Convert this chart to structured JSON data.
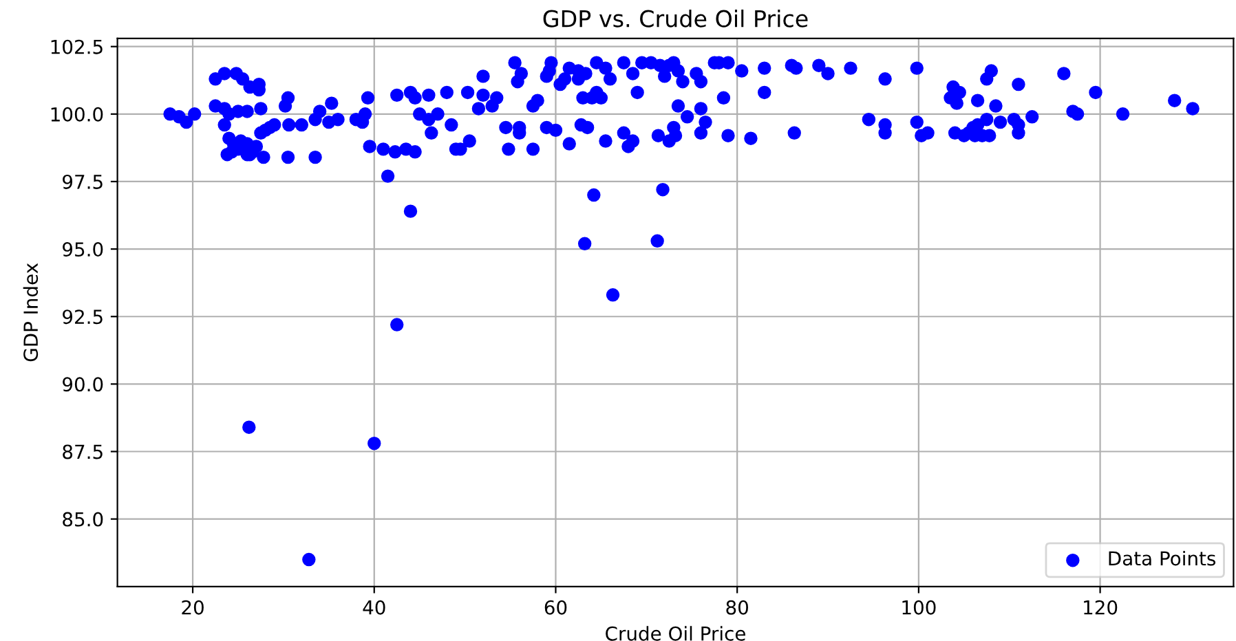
{
  "chart_data": {
    "type": "scatter",
    "title": "GDP vs. Crude Oil Price",
    "xlabel": "Crude Oil Price",
    "ylabel": "GDP Index",
    "xlim": [
      11.7,
      134.7
    ],
    "ylim": [
      82.5,
      102.8
    ],
    "xticks": [
      20,
      40,
      60,
      80,
      100,
      120
    ],
    "yticks": [
      {
        "value": 85,
        "label": "85.0"
      },
      {
        "value": 87.5,
        "label": "87.5"
      },
      {
        "value": 90,
        "label": "90.0"
      },
      {
        "value": 92.5,
        "label": "92.5"
      },
      {
        "value": 95,
        "label": "95.0"
      },
      {
        "value": 97.5,
        "label": "97.5"
      },
      {
        "value": 100,
        "label": "100.0"
      },
      {
        "value": 102.5,
        "label": "102.5"
      }
    ],
    "grid": true,
    "legend": "bottom right",
    "marker": "circle",
    "series": [
      {
        "name": "Data Points",
        "color": "#0000ff",
        "x": [
          17.5,
          18.5,
          19.3,
          20.2,
          22.5,
          23.5,
          24.8,
          25.5,
          26.3,
          27.3,
          27.3,
          22.5,
          23.5,
          24.0,
          25,
          26,
          23.5,
          24,
          24.5,
          25,
          25.3,
          26,
          26,
          26.6,
          27,
          27.5,
          28.0,
          28.5,
          29,
          23.8,
          24.3,
          26.3,
          27.8,
          30.5,
          33.5,
          27.5,
          30.5,
          30.2,
          30.6,
          32,
          33.5,
          34,
          35.3,
          35,
          36,
          38,
          38.7,
          39,
          39.3,
          39.5,
          41,
          41.5,
          42.3,
          43.5,
          44.5,
          44,
          42.5,
          40,
          26.2,
          32.8,
          42.5,
          44,
          44.5,
          45,
          46,
          46,
          46.3,
          47,
          48,
          48.5,
          49,
          49.5,
          50.5,
          50.3,
          51.5,
          52,
          52,
          53,
          53.5,
          54.5,
          54.8,
          55.5,
          55.8,
          56.2,
          56,
          56,
          57.5,
          57.5,
          58,
          59,
          59.3,
          59.5,
          59,
          60,
          60.5,
          61,
          61.5,
          61.5,
          62.5,
          62.5,
          62.8,
          63,
          63.3,
          63.5,
          64,
          64.5,
          64.5,
          65,
          65.5,
          66,
          65.5,
          66.3,
          63.2,
          64.2,
          67.5,
          67.5,
          68,
          68.5,
          68.5,
          69,
          69.5,
          70.5,
          71.3,
          71.5,
          72,
          72.5,
          72.5,
          73,
          73.5,
          73,
          73.2,
          73.5,
          74,
          74.5,
          75.5,
          76,
          76,
          76,
          76.5,
          77.5,
          78,
          78.5,
          79,
          79,
          80.5,
          81.5,
          71.2,
          71.8,
          83,
          83,
          86,
          86.5,
          86.3,
          89,
          90,
          92.5,
          94.5,
          96.3,
          96.3,
          96.3,
          99.8,
          99.8,
          100.3,
          101,
          103.5,
          103.8,
          104.2,
          104,
          104.5,
          105,
          105.5,
          106,
          106.5,
          107,
          107.5,
          106.5,
          107.5,
          108,
          108.5,
          109,
          110.5,
          111,
          111,
          111,
          112.5,
          116,
          117,
          117.5,
          119.5,
          122.5,
          128.2,
          130.2,
          107.8,
          106.2
        ],
        "values": [
          100.0,
          99.9,
          99.7,
          100.0,
          101.3,
          101.5,
          101.5,
          101.3,
          101.0,
          100.9,
          101.1,
          100.3,
          100.2,
          100.0,
          100.1,
          100.1,
          99.6,
          99.1,
          98.9,
          98.7,
          99.0,
          98.9,
          98.5,
          98.6,
          98.8,
          99.3,
          99.4,
          99.5,
          99.6,
          98.5,
          98.6,
          98.5,
          98.4,
          98.4,
          98.4,
          100.2,
          100.6,
          100.3,
          99.6,
          99.6,
          99.8,
          100.1,
          100.4,
          99.7,
          99.8,
          99.8,
          99.7,
          100.0,
          100.6,
          98.8,
          98.7,
          97.7,
          98.6,
          98.7,
          98.6,
          96.4,
          92.2,
          87.8,
          88.4,
          83.5,
          100.7,
          100.8,
          100.6,
          100.0,
          100.7,
          99.8,
          99.3,
          100.0,
          100.8,
          99.6,
          98.7,
          98.7,
          99.0,
          100.8,
          100.2,
          100.7,
          101.4,
          100.3,
          100.6,
          99.5,
          98.7,
          101.9,
          101.2,
          101.5,
          99.5,
          99.3,
          100.3,
          98.7,
          100.5,
          101.4,
          101.6,
          101.9,
          99.5,
          99.4,
          101.1,
          101.3,
          101.7,
          98.9,
          101.6,
          101.3,
          99.6,
          100.6,
          101.5,
          99.5,
          100.6,
          101.9,
          100.8,
          100.6,
          101.7,
          101.3,
          99.0,
          93.3,
          95.2,
          97.0,
          101.9,
          99.3,
          98.8,
          101.5,
          99.0,
          100.8,
          101.9,
          101.9,
          99.2,
          101.8,
          101.4,
          99.0,
          101.8,
          101.9,
          101.6,
          99.5,
          99.2,
          100.3,
          101.2,
          99.9,
          101.5,
          101.2,
          100.2,
          99.3,
          99.7,
          101.9,
          101.9,
          100.6,
          99.2,
          101.9,
          101.6,
          99.1,
          95.3,
          97.2,
          101.7,
          100.8,
          101.8,
          101.7,
          99.3,
          101.8,
          101.5,
          101.7,
          99.8,
          99.6,
          99.3,
          101.3,
          101.7,
          99.7,
          99.2,
          99.3,
          100.6,
          101.0,
          100.4,
          99.3,
          100.8,
          99.2,
          99.3,
          99.5,
          99.6,
          99.2,
          99.8,
          100.5,
          101.3,
          101.6,
          100.3,
          99.7,
          99.8,
          101.1,
          99.6,
          99.3,
          99.9,
          101.5,
          100.1,
          100.0,
          100.8,
          100.0,
          100.5,
          100.2,
          99.2,
          99.2
        ]
      }
    ]
  }
}
